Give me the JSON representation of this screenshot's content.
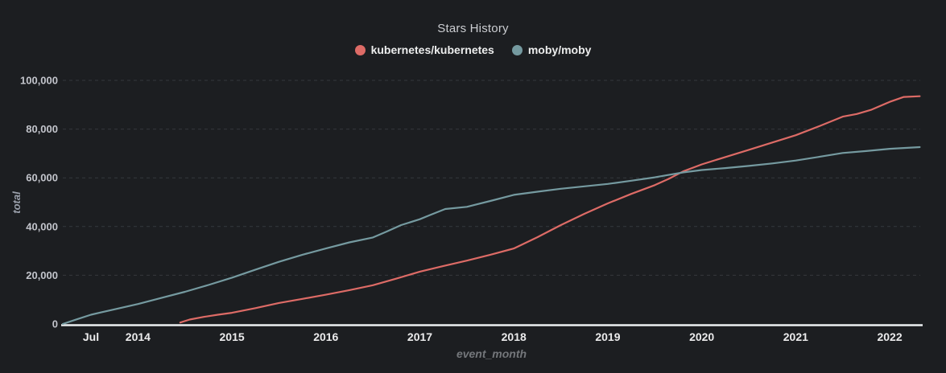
{
  "window": {
    "background": "#1c1e21"
  },
  "header": {
    "title": "Stars History"
  },
  "legend": {
    "position": "top-center",
    "items": [
      {
        "label": "kubernetes/kubernetes",
        "color": "#dd6b66"
      },
      {
        "label": "moby/moby",
        "color": "#759aa0"
      }
    ]
  },
  "colors": {
    "background": "#1c1e21",
    "title_text": "#cbcdd1",
    "legend_text": "#eceded",
    "axis_line": "#eceff1",
    "grid_line": "#35383d",
    "x_tick_label": "#ebebec",
    "y_tick_label": "#c3c5cc",
    "y_axis_name": "#9aa0ab",
    "x_axis_name": "#74777b",
    "series_kubernetes": "#dd6b66",
    "series_moby": "#759aa0"
  },
  "chart_data": {
    "type": "line",
    "title": "Stars History",
    "xlabel": "event_month",
    "ylabel": "total",
    "x_axis_unit": "decimal_year",
    "xlim": [
      2013.2,
      2022.325
    ],
    "ylim": [
      0,
      100000
    ],
    "grid": "horizontal dashed gridlines every 20,000; no vertical gridlines",
    "legend_position": "top-center",
    "x_ticks": [
      {
        "pos": 2013.5,
        "label": "Jul"
      },
      {
        "pos": 2014,
        "label": "2014"
      },
      {
        "pos": 2015,
        "label": "2015"
      },
      {
        "pos": 2016,
        "label": "2016"
      },
      {
        "pos": 2017,
        "label": "2017"
      },
      {
        "pos": 2018,
        "label": "2018"
      },
      {
        "pos": 2019,
        "label": "2019"
      },
      {
        "pos": 2020,
        "label": "2020"
      },
      {
        "pos": 2021,
        "label": "2021"
      },
      {
        "pos": 2022,
        "label": "2022"
      }
    ],
    "y_ticks": [
      {
        "value": 0,
        "label": "0"
      },
      {
        "value": 20000,
        "label": "20,000"
      },
      {
        "value": 40000,
        "label": "40,000"
      },
      {
        "value": 60000,
        "label": "60,000"
      },
      {
        "value": 80000,
        "label": "80,000"
      },
      {
        "value": 100000,
        "label": "100,000"
      }
    ],
    "series": [
      {
        "name": "kubernetes/kubernetes",
        "color": "#dd6b66",
        "points": [
          [
            2014.45,
            600
          ],
          [
            2014.55,
            1800
          ],
          [
            2014.7,
            2900
          ],
          [
            2014.85,
            3800
          ],
          [
            2015.0,
            4600
          ],
          [
            2015.25,
            6500
          ],
          [
            2015.5,
            8600
          ],
          [
            2015.75,
            10300
          ],
          [
            2016.0,
            12000
          ],
          [
            2016.25,
            13900
          ],
          [
            2016.5,
            15900
          ],
          [
            2016.75,
            18600
          ],
          [
            2017.0,
            21500
          ],
          [
            2017.25,
            23800
          ],
          [
            2017.5,
            26000
          ],
          [
            2017.75,
            28400
          ],
          [
            2018.0,
            31000
          ],
          [
            2018.25,
            35600
          ],
          [
            2018.5,
            40600
          ],
          [
            2018.75,
            45200
          ],
          [
            2019.0,
            49500
          ],
          [
            2019.25,
            53400
          ],
          [
            2019.5,
            57000
          ],
          [
            2019.65,
            59600
          ],
          [
            2019.8,
            62600
          ],
          [
            2020.0,
            65500
          ],
          [
            2020.25,
            68500
          ],
          [
            2020.5,
            71500
          ],
          [
            2020.75,
            74500
          ],
          [
            2021.0,
            77500
          ],
          [
            2021.25,
            81200
          ],
          [
            2021.5,
            85100
          ],
          [
            2021.65,
            86200
          ],
          [
            2021.8,
            87900
          ],
          [
            2022.0,
            91200
          ],
          [
            2022.15,
            93200
          ],
          [
            2022.32,
            93500
          ]
        ]
      },
      {
        "name": "moby/moby",
        "color": "#759aa0",
        "points": [
          [
            2013.2,
            0
          ],
          [
            2013.35,
            1900
          ],
          [
            2013.5,
            3800
          ],
          [
            2013.75,
            6000
          ],
          [
            2014.0,
            8200
          ],
          [
            2014.25,
            10700
          ],
          [
            2014.5,
            13200
          ],
          [
            2014.75,
            16000
          ],
          [
            2015.0,
            19000
          ],
          [
            2015.25,
            22300
          ],
          [
            2015.5,
            25500
          ],
          [
            2015.75,
            28400
          ],
          [
            2016.0,
            31000
          ],
          [
            2016.25,
            33500
          ],
          [
            2016.5,
            35500
          ],
          [
            2016.65,
            38000
          ],
          [
            2016.8,
            40600
          ],
          [
            2017.0,
            43000
          ],
          [
            2017.1,
            44600
          ],
          [
            2017.27,
            47200
          ],
          [
            2017.5,
            48100
          ],
          [
            2017.75,
            50500
          ],
          [
            2018.0,
            53000
          ],
          [
            2018.25,
            54300
          ],
          [
            2018.5,
            55500
          ],
          [
            2018.75,
            56500
          ],
          [
            2019.0,
            57500
          ],
          [
            2019.25,
            58800
          ],
          [
            2019.5,
            60200
          ],
          [
            2019.8,
            62200
          ],
          [
            2020.0,
            63200
          ],
          [
            2020.25,
            64000
          ],
          [
            2020.5,
            64900
          ],
          [
            2020.75,
            65900
          ],
          [
            2021.0,
            67100
          ],
          [
            2021.25,
            68600
          ],
          [
            2021.5,
            70200
          ],
          [
            2021.75,
            71000
          ],
          [
            2022.0,
            71900
          ],
          [
            2022.32,
            72600
          ]
        ]
      }
    ]
  }
}
